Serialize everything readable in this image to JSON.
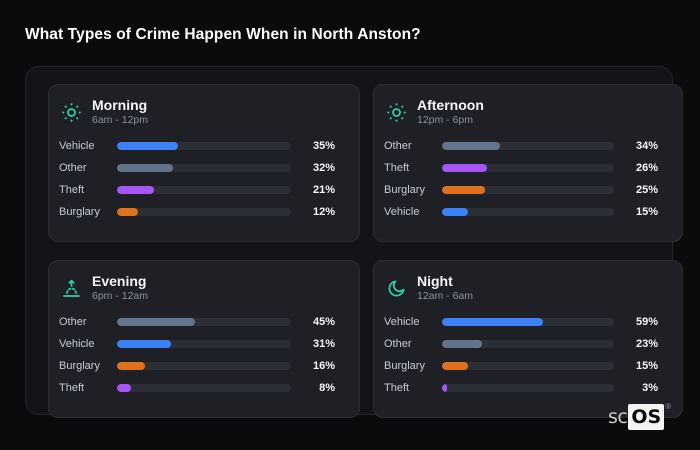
{
  "page": {
    "title": "What Types of Crime Happen When in North Anston?"
  },
  "watermark": {
    "prefix": "sc",
    "box": "OS",
    "reg": "®"
  },
  "colors": {
    "background": "#0a0b0d",
    "card": "#131418",
    "panel": "#1e2025",
    "track": "#2c2f36",
    "accent_icon": "#2ed3a3",
    "vehicle": "#3b82f6",
    "other": "#64748b",
    "theft": "#a855f7",
    "burglary": "#e2711b"
  },
  "chart_data": {
    "type": "bar",
    "orientation": "horizontal",
    "title": "What Types of Crime Happen When in North Anston?",
    "value_unit": "%",
    "value_range": [
      0,
      100
    ],
    "legend": false,
    "grid": false,
    "groups": [
      {
        "id": "morning",
        "label": "Morning",
        "time_range": "6am - 12pm",
        "icon": "sun-dots-icon",
        "bars": [
          {
            "category": "Vehicle",
            "value": 35,
            "value_label": "35%",
            "color": "#3b82f6"
          },
          {
            "category": "Other",
            "value": 32,
            "value_label": "32%",
            "color": "#64748b"
          },
          {
            "category": "Theft",
            "value": 21,
            "value_label": "21%",
            "color": "#a855f7"
          },
          {
            "category": "Burglary",
            "value": 12,
            "value_label": "12%",
            "color": "#e2711b"
          }
        ]
      },
      {
        "id": "afternoon",
        "label": "Afternoon",
        "time_range": "12pm - 6pm",
        "icon": "sun-dots-icon",
        "bars": [
          {
            "category": "Other",
            "value": 34,
            "value_label": "34%",
            "color": "#64748b"
          },
          {
            "category": "Theft",
            "value": 26,
            "value_label": "26%",
            "color": "#a855f7"
          },
          {
            "category": "Burglary",
            "value": 25,
            "value_label": "25%",
            "color": "#e2711b"
          },
          {
            "category": "Vehicle",
            "value": 15,
            "value_label": "15%",
            "color": "#3b82f6"
          }
        ]
      },
      {
        "id": "evening",
        "label": "Evening",
        "time_range": "6pm - 12am",
        "icon": "sunrise-icon",
        "bars": [
          {
            "category": "Other",
            "value": 45,
            "value_label": "45%",
            "color": "#64748b"
          },
          {
            "category": "Vehicle",
            "value": 31,
            "value_label": "31%",
            "color": "#3b82f6"
          },
          {
            "category": "Burglary",
            "value": 16,
            "value_label": "16%",
            "color": "#e2711b"
          },
          {
            "category": "Theft",
            "value": 8,
            "value_label": "8%",
            "color": "#a855f7"
          }
        ]
      },
      {
        "id": "night",
        "label": "Night",
        "time_range": "12am - 6am",
        "icon": "moon-icon",
        "bars": [
          {
            "category": "Vehicle",
            "value": 59,
            "value_label": "59%",
            "color": "#3b82f6"
          },
          {
            "category": "Other",
            "value": 23,
            "value_label": "23%",
            "color": "#64748b"
          },
          {
            "category": "Burglary",
            "value": 15,
            "value_label": "15%",
            "color": "#e2711b"
          },
          {
            "category": "Theft",
            "value": 3,
            "value_label": "3%",
            "color": "#a855f7"
          }
        ]
      }
    ]
  }
}
